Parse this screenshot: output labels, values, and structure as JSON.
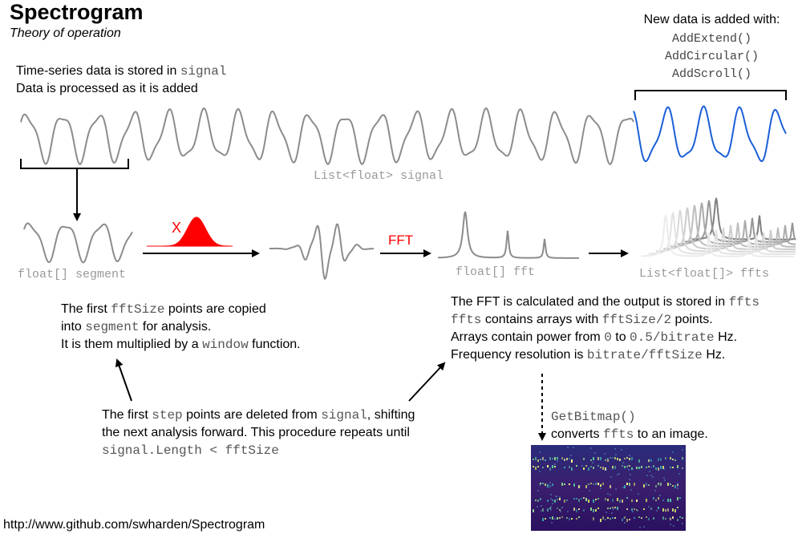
{
  "header": {
    "title": "Spectrogram",
    "subtitle": "Theory of operation"
  },
  "intro": {
    "line1_prefix": "Time-series data is stored in ",
    "line1_code": "signal",
    "line2": "Data is processed as it is added"
  },
  "new_data": {
    "heading": "New data is added with:",
    "methods": [
      "AddExtend()",
      "AddCircular()",
      "AddScroll()"
    ]
  },
  "labels": {
    "signal_list": "List<float> signal",
    "segment": "float[] segment",
    "fft_array": "float[] fft",
    "ffts_list": "List<float[]> ffts",
    "multiply_symbol": "X",
    "fft_op": "FFT"
  },
  "note_segment": {
    "l1_a": "The first ",
    "l1_code": "fftSize",
    "l1_b": " points are copied",
    "l2_a": "into ",
    "l2_code": "segment",
    "l2_b": " for analysis.",
    "l3_a": "It is them multiplied by a ",
    "l3_code": "window",
    "l3_b": " function."
  },
  "note_fft": {
    "l1_a": "The FFT is calculated and the output is stored in ",
    "l1_code": "ffts",
    "l2_code1": "ffts",
    "l2_a": " contains arrays with ",
    "l2_code2": "fftSize/2",
    "l2_b": " points.",
    "l3_a": "Arrays contain power from ",
    "l3_code1": "0",
    "l3_b": " to ",
    "l3_code2": "0.5/bitrate",
    "l3_c": " Hz.",
    "l4_a": "Frequency resolution is ",
    "l4_code": "bitrate/fftSize",
    "l4_b": " Hz."
  },
  "note_step": {
    "l1_a": "The first ",
    "l1_code1": "step",
    "l1_b": " points are deleted from ",
    "l1_code2": "signal",
    "l1_c": ", shifting",
    "l2": "the next analysis forward. This procedure repeats until",
    "l3_code": "signal.Length < fftSize"
  },
  "bitmap_note": {
    "l1_code": "GetBitmap()",
    "l2_a": "converts ",
    "l2_code": "ffts",
    "l2_b": " to an image."
  },
  "footer": {
    "url": "http://www.github.com/swharden/Spectrogram"
  },
  "colors": {
    "signal_gray": "#8c8c8c",
    "new_data_blue": "#1a5fd6",
    "window_red": "#ff0000",
    "bitmap_bg": "#2d1060"
  }
}
